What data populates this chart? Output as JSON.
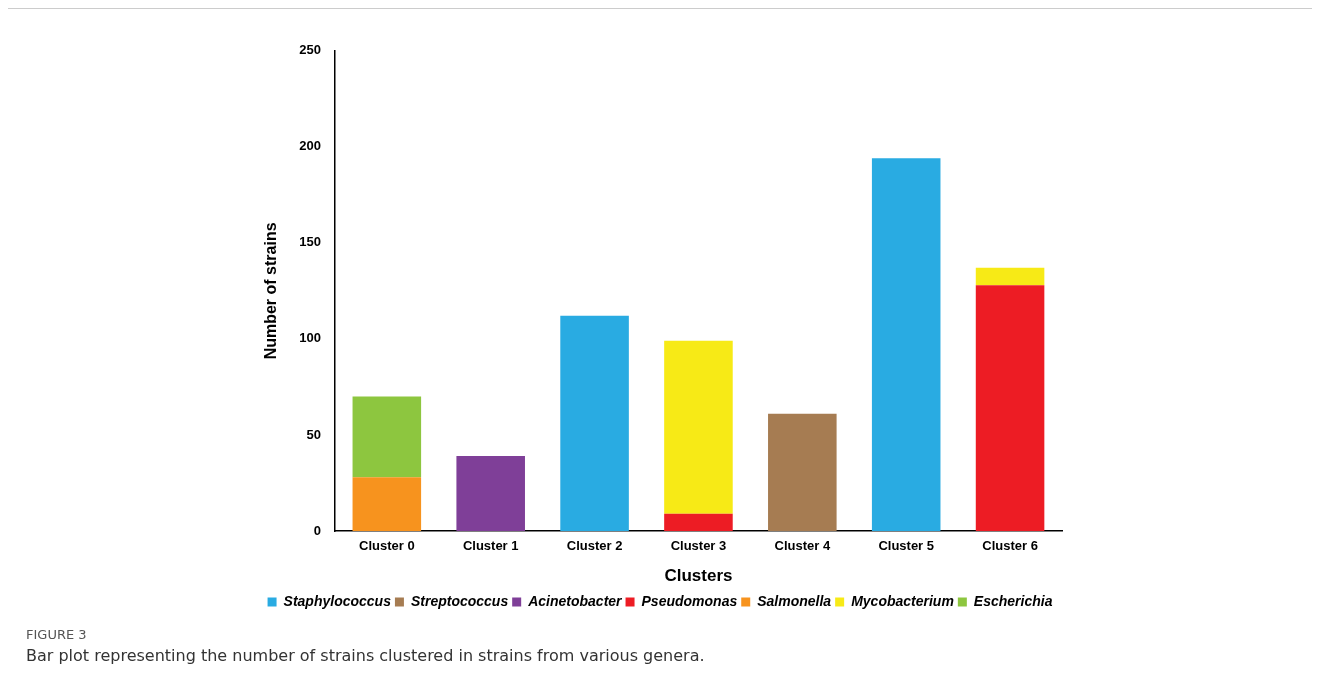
{
  "chart_data": {
    "type": "bar",
    "stacked": true,
    "xlabel": "Clusters",
    "ylabel": "Number of strains",
    "categories": [
      "Cluster 0",
      "Cluster 1",
      "Cluster 2",
      "Cluster 3",
      "Cluster 4",
      "Cluster 5",
      "Cluster 6"
    ],
    "series": [
      {
        "name": "Staphylococcus",
        "color": "#29abe2",
        "values": [
          null,
          null,
          112,
          null,
          null,
          194,
          null
        ]
      },
      {
        "name": "Streptococcus",
        "color": "#a67c52",
        "values": [
          null,
          null,
          null,
          null,
          61,
          null,
          null
        ]
      },
      {
        "name": "Acinetobacter",
        "color": "#7f3f98",
        "values": [
          null,
          39,
          null,
          null,
          null,
          null,
          null
        ]
      },
      {
        "name": "Pseudomonas",
        "color": "#ed1c24",
        "values": [
          null,
          null,
          null,
          9,
          null,
          null,
          128
        ]
      },
      {
        "name": "Salmonella",
        "color": "#f7931e",
        "values": [
          28,
          null,
          null,
          null,
          null,
          null,
          null
        ]
      },
      {
        "name": "Mycobacterium",
        "color": "#f7ea16",
        "values": [
          null,
          null,
          null,
          90,
          null,
          null,
          9
        ]
      },
      {
        "name": "Escherichia",
        "color": "#8dc63f",
        "values": [
          42,
          null,
          null,
          null,
          null,
          null,
          null
        ]
      }
    ],
    "ylim": [
      0,
      250
    ],
    "yticks": [
      0,
      50,
      100,
      150,
      200,
      250
    ],
    "grid": false,
    "legend": "bottom",
    "annotations": [
      "FIGURE 3",
      "Bar plot representing the number of strains clustered in strains from various genera."
    ]
  }
}
